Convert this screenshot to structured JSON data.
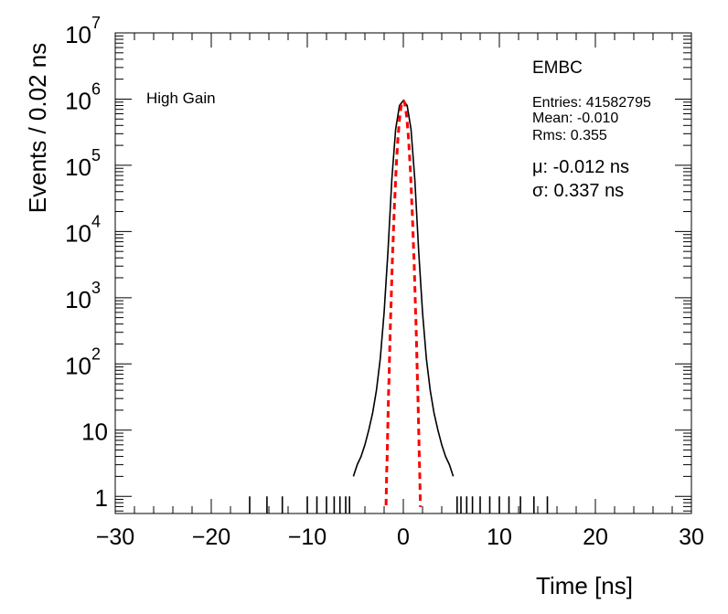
{
  "chart_data": {
    "type": "histogram",
    "title": "EMBC",
    "xlabel": "Time [ns]",
    "ylabel": "Events / 0.02 ns",
    "xlim": [
      -30,
      30
    ],
    "ylim": [
      0.55,
      10000000
    ],
    "yscale": "log",
    "grid": false,
    "annotation": "High Gain",
    "x_ticks": [
      "−30",
      "−20",
      "−10",
      "0",
      "10",
      "20",
      "30"
    ],
    "y_ticks": [
      {
        "base": "1",
        "exp": ""
      },
      {
        "base": "10",
        "exp": ""
      },
      {
        "base": "10",
        "exp": "2"
      },
      {
        "base": "10",
        "exp": "3"
      },
      {
        "base": "10",
        "exp": "4"
      },
      {
        "base": "10",
        "exp": "5"
      },
      {
        "base": "10",
        "exp": "6"
      },
      {
        "base": "10",
        "exp": "7"
      }
    ],
    "stats": {
      "entries": "Entries: 41582795",
      "mean": "Mean: -0.010",
      "rms": "Rms: 0.355"
    },
    "fit": {
      "mu": "μ: -0.012 ns",
      "sigma": "σ: 0.337 ns",
      "mu_value": -0.012,
      "sigma_value": 0.337,
      "peak": 950000,
      "color": "#ff0000"
    },
    "series": [
      {
        "color": "#000000",
        "x": [
          -16.0,
          -14.2,
          -12.6,
          -10.0,
          -9.0,
          -8.0,
          -7.2,
          -6.6,
          -6.0,
          -5.6,
          -5.2,
          -4.8,
          -4.4,
          -4.0,
          -3.6,
          -3.2,
          -2.8,
          -2.4,
          -2.0,
          -1.6,
          -1.2,
          -0.8,
          -0.4,
          0.0,
          0.4,
          0.8,
          1.2,
          1.6,
          2.0,
          2.4,
          2.8,
          3.2,
          3.6,
          4.0,
          4.4,
          4.8,
          5.2,
          5.6,
          6.0,
          6.6,
          7.2,
          8.0,
          9.0,
          10.0,
          11.0,
          12.2,
          13.6,
          15.0
        ],
        "y": [
          1,
          1,
          1,
          1,
          1,
          1,
          1,
          1,
          1,
          1,
          2,
          3,
          4,
          6,
          10,
          18,
          40,
          120,
          600,
          5000,
          60000,
          350000,
          800000,
          950000,
          800000,
          350000,
          60000,
          5000,
          600,
          120,
          40,
          18,
          10,
          6,
          4,
          3,
          2,
          1,
          1,
          1,
          1,
          1,
          1,
          1,
          1,
          1,
          1,
          1
        ]
      }
    ]
  }
}
